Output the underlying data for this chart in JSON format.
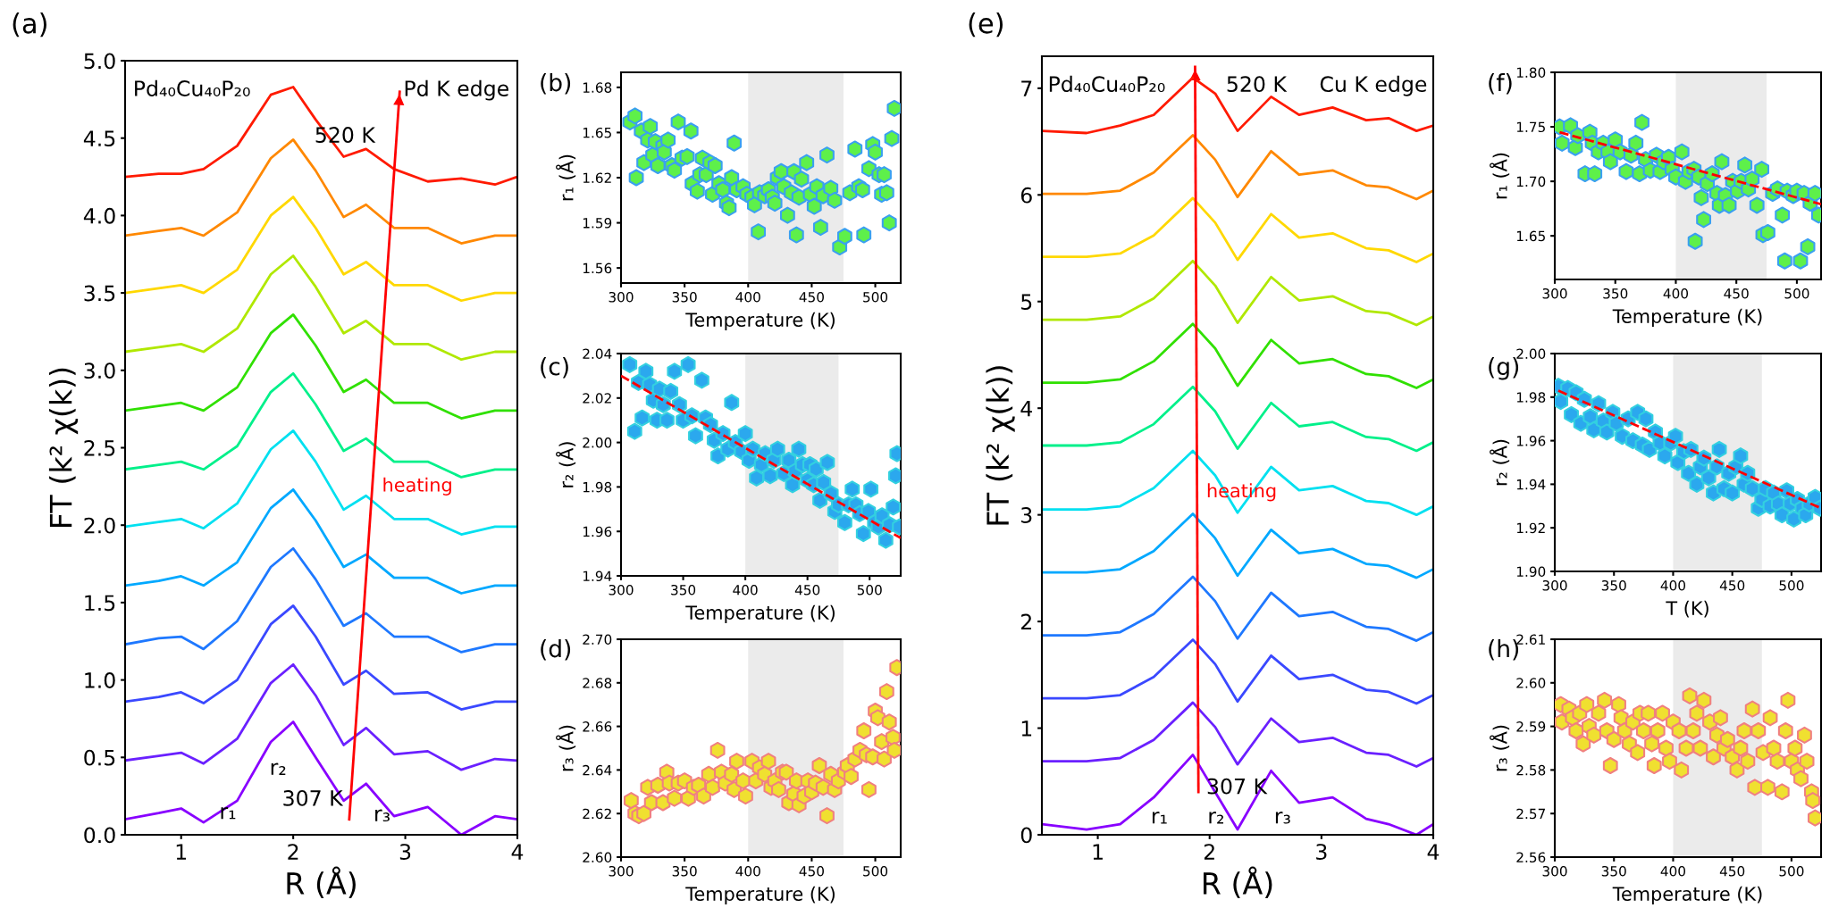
{
  "chart_data": [
    {
      "type": "line",
      "xlabel": "R (Å)",
      "ylabel": "FT (k² χ(k))",
      "xlim": [
        0.5,
        4
      ],
      "xticks": [
        1,
        2,
        3,
        4
      ],
      "ylim": [
        0,
        5
      ],
      "yticks": [
        {
          "value": 0,
          "label": "0.0"
        },
        0.5,
        {
          "value": 1,
          "label": "1.0"
        },
        1.5,
        {
          "value": 2,
          "label": "2.0"
        },
        2.5,
        {
          "value": 3,
          "label": "3.0"
        },
        3.5,
        {
          "value": 4,
          "label": "4.0"
        },
        4.5,
        {
          "value": 5,
          "label": "5.0"
        }
      ],
      "x": [
        0.5,
        0.8,
        1.0,
        1.2,
        1.5,
        1.8,
        2.0,
        2.2,
        2.45,
        2.65,
        2.9,
        3.2,
        3.5,
        3.8,
        4.0
      ],
      "series": [
        {
          "color": "#8800ff",
          "values": [
            0.1,
            0.14,
            0.17,
            0.08,
            0.22,
            0.6,
            0.73,
            0.5,
            0.22,
            0.33,
            0.12,
            0.18,
            0.0,
            0.12,
            0.1
          ]
        },
        {
          "color": "#6a20ff",
          "values": [
            0.48,
            0.51,
            0.53,
            0.46,
            0.62,
            0.98,
            1.1,
            0.9,
            0.58,
            0.69,
            0.52,
            0.54,
            0.42,
            0.49,
            0.48
          ]
        },
        {
          "color": "#3a48ff",
          "values": [
            0.86,
            0.89,
            0.92,
            0.85,
            1.0,
            1.36,
            1.48,
            1.28,
            0.97,
            1.06,
            0.91,
            0.92,
            0.81,
            0.86,
            0.86
          ]
        },
        {
          "color": "#1e78ff",
          "values": [
            1.23,
            1.27,
            1.28,
            1.2,
            1.38,
            1.73,
            1.85,
            1.65,
            1.35,
            1.43,
            1.28,
            1.28,
            1.18,
            1.23,
            1.23
          ]
        },
        {
          "color": "#00a8ff",
          "values": [
            1.61,
            1.64,
            1.67,
            1.61,
            1.76,
            2.11,
            2.23,
            2.03,
            1.73,
            1.81,
            1.66,
            1.66,
            1.56,
            1.61,
            1.61
          ]
        },
        {
          "color": "#00e0f0",
          "values": [
            1.99,
            2.02,
            2.04,
            1.98,
            2.14,
            2.49,
            2.61,
            2.41,
            2.1,
            2.19,
            2.04,
            2.04,
            1.94,
            1.99,
            1.99
          ]
        },
        {
          "color": "#00f08a",
          "values": [
            2.36,
            2.39,
            2.41,
            2.36,
            2.51,
            2.86,
            2.98,
            2.78,
            2.48,
            2.56,
            2.41,
            2.41,
            2.31,
            2.36,
            2.36
          ]
        },
        {
          "color": "#30e000",
          "values": [
            2.74,
            2.77,
            2.79,
            2.74,
            2.89,
            3.24,
            3.36,
            3.16,
            2.86,
            2.94,
            2.79,
            2.79,
            2.69,
            2.74,
            2.74
          ]
        },
        {
          "color": "#b0e800",
          "values": [
            3.12,
            3.15,
            3.17,
            3.12,
            3.27,
            3.62,
            3.74,
            3.54,
            3.24,
            3.32,
            3.17,
            3.17,
            3.07,
            3.12,
            3.12
          ]
        },
        {
          "color": "#ffd800",
          "values": [
            3.5,
            3.53,
            3.55,
            3.5,
            3.65,
            4.0,
            4.12,
            3.92,
            3.62,
            3.7,
            3.55,
            3.55,
            3.45,
            3.5,
            3.5
          ]
        },
        {
          "color": "#ff8800",
          "values": [
            3.87,
            3.9,
            3.92,
            3.87,
            4.02,
            4.37,
            4.49,
            4.29,
            3.99,
            4.07,
            3.92,
            3.92,
            3.82,
            3.87,
            3.87
          ]
        },
        {
          "color": "#ff1a00",
          "values": [
            4.25,
            4.27,
            4.27,
            4.3,
            4.45,
            4.78,
            4.83,
            4.62,
            4.38,
            4.43,
            4.3,
            4.22,
            4.24,
            4.2,
            4.25
          ]
        },
        {
          "type": "line",
          "color": "#ff0000",
          "line_style": "solid",
          "x": [
            2.5,
            2.95
          ],
          "values": [
            0.1,
            4.8
          ]
        }
      ],
      "annotations": [
        "(a)",
        "Pd₄₀Cu₄₀P₂₀",
        "Pd K edge",
        "520 K",
        "307 K",
        "heating",
        "r₁",
        "r₂",
        "r₃"
      ]
    },
    {
      "type": "scatter",
      "xlabel": "Temperature (K)",
      "ylabel": "r₁ (Å)",
      "xlim": [
        300,
        520
      ],
      "xticks": [
        300,
        350,
        400,
        450,
        500
      ],
      "ylim": [
        1.55,
        1.69
      ],
      "yticks": [
        1.56,
        1.59,
        1.62,
        1.65,
        1.68
      ],
      "bands": [
        {
          "axis": "x",
          "from": 400,
          "to": 475,
          "color": "#ebebeb"
        }
      ],
      "annotations": [
        "(b)"
      ],
      "series": [
        {
          "color": "#5ef04a",
          "x": [
            307,
            311,
            312,
            316,
            318,
            321,
            323,
            325,
            327,
            329,
            333,
            334,
            337,
            340,
            342,
            345,
            348,
            352,
            355,
            356,
            360,
            362,
            364,
            367,
            370,
            372,
            374,
            377,
            380,
            383,
            385,
            387,
            389,
            391,
            396,
            399,
            403,
            405,
            408,
            409,
            413,
            416,
            419,
            421,
            423,
            426,
            428,
            431,
            434,
            436,
            438,
            440,
            442,
            446,
            449,
            452,
            454,
            457,
            459,
            462,
            465,
            468,
            472,
            476,
            480,
            484,
            487,
            490,
            491,
            495,
            498,
            500,
            503,
            505,
            507,
            509,
            511,
            513,
            515
          ],
          "values": [
            1.657,
            1.661,
            1.62,
            1.651,
            1.63,
            1.645,
            1.654,
            1.635,
            1.644,
            1.628,
            1.641,
            1.637,
            1.645,
            1.628,
            1.625,
            1.657,
            1.633,
            1.634,
            1.651,
            1.616,
            1.611,
            1.622,
            1.633,
            1.622,
            1.63,
            1.609,
            1.628,
            1.616,
            1.612,
            1.603,
            1.6,
            1.62,
            1.643,
            1.612,
            1.614,
            1.609,
            1.607,
            1.602,
            1.584,
            1.61,
            1.608,
            1.612,
            1.607,
            1.603,
            1.62,
            1.624,
            1.614,
            1.595,
            1.61,
            1.624,
            1.582,
            1.607,
            1.619,
            1.63,
            1.609,
            1.601,
            1.614,
            1.587,
            1.608,
            1.635,
            1.613,
            1.605,
            1.574,
            1.581,
            1.61,
            1.639,
            1.614,
            1.612,
            1.582,
            1.626,
            1.642,
            1.637,
            1.622,
            1.609,
            1.622,
            1.61,
            1.59,
            1.646,
            1.666
          ]
        }
      ]
    },
    {
      "type": "scatter",
      "xlabel": "Temperature (K)",
      "ylabel": "r₂ (Å)",
      "xlim": [
        300,
        525
      ],
      "xticks": [
        300,
        350,
        400,
        450,
        500
      ],
      "ylim": [
        1.94,
        2.04
      ],
      "yticks": [
        1.94,
        1.96,
        1.98,
        {
          "value": 2.0,
          "label": "2.00"
        },
        2.02,
        2.04
      ],
      "bands": [
        {
          "axis": "x",
          "from": 400,
          "to": 475,
          "color": "#ebebeb"
        }
      ],
      "annotations": [
        "(c)"
      ],
      "series": [
        {
          "color": "#2ba8ee",
          "x": [
            307,
            311,
            314,
            317,
            320,
            323,
            326,
            329,
            331,
            334,
            337,
            340,
            343,
            347,
            350,
            354,
            357,
            360,
            365,
            368,
            372,
            375,
            378,
            382,
            386,
            389,
            392,
            397,
            400,
            403,
            406,
            409,
            413,
            416,
            420,
            423,
            426,
            431,
            435,
            438,
            440,
            443,
            446,
            450,
            452,
            455,
            457,
            460,
            463,
            466,
            469,
            472,
            475,
            480,
            483,
            486,
            489,
            492,
            495,
            499,
            501,
            504,
            507,
            510,
            513,
            516,
            519,
            521,
            522,
            524
          ],
          "values": [
            2.035,
            2.005,
            2.027,
            2.011,
            2.032,
            2.026,
            2.019,
            2.01,
            2.024,
            2.017,
            2.01,
            2.023,
            2.032,
            2.017,
            2.01,
            2.035,
            2.012,
            2.003,
            2.028,
            2.011,
            2.008,
            2.001,
            1.994,
            2.004,
            1.997,
            2.018,
            2.0,
            1.996,
            2.004,
            1.992,
            1.997,
            1.984,
            1.99,
            1.995,
            1.985,
            1.992,
            1.997,
            1.986,
            1.992,
            1.981,
            1.987,
            1.997,
            1.99,
            1.983,
            1.99,
            1.981,
            1.988,
            1.974,
            1.982,
            1.991,
            1.977,
            1.969,
            1.972,
            1.964,
            1.972,
            1.979,
            1.972,
            1.968,
            1.959,
            1.969,
            1.979,
            1.964,
            1.962,
            1.967,
            1.956,
            1.963,
            1.971,
            1.985,
            1.995,
            1.962
          ]
        },
        {
          "type": "line",
          "color": "#ff0000",
          "line_style": "dashed",
          "x": [
            300,
            525
          ],
          "values": [
            2.03,
            1.957
          ]
        }
      ]
    },
    {
      "type": "scatter",
      "xlabel": "Temperature (K)",
      "ylabel": "r₃ (Å)",
      "xlim": [
        300,
        520
      ],
      "xticks": [
        300,
        350,
        400,
        450,
        500
      ],
      "ylim": [
        2.6,
        2.7
      ],
      "yticks": [
        {
          "value": 2.6,
          "label": "2.60"
        },
        2.62,
        2.64,
        2.66,
        2.68,
        {
          "value": 2.7,
          "label": "2.70"
        }
      ],
      "bands": [
        {
          "axis": "x",
          "from": 400,
          "to": 475,
          "color": "#ebebeb"
        }
      ],
      "annotations": [
        "(d)"
      ],
      "series": [
        {
          "color": "#f0e030",
          "x": [
            308,
            311,
            314,
            318,
            321,
            324,
            329,
            333,
            336,
            338,
            342,
            345,
            350,
            353,
            357,
            361,
            365,
            369,
            372,
            376,
            379,
            382,
            387,
            389,
            391,
            396,
            398,
            403,
            406,
            409,
            413,
            416,
            418,
            421,
            424,
            427,
            430,
            432,
            436,
            438,
            440,
            444,
            447,
            450,
            453,
            456,
            459,
            462,
            465,
            468,
            471,
            476,
            478,
            481,
            484,
            488,
            491,
            493,
            495,
            498,
            500,
            502,
            505,
            507,
            509,
            511,
            514,
            515,
            517
          ],
          "values": [
            2.626,
            2.62,
            2.619,
            2.62,
            2.632,
            2.625,
            2.633,
            2.625,
            2.639,
            2.634,
            2.627,
            2.634,
            2.635,
            2.627,
            2.632,
            2.633,
            2.628,
            2.638,
            2.632,
            2.649,
            2.639,
            2.634,
            2.638,
            2.631,
            2.644,
            2.635,
            2.628,
            2.644,
            2.635,
            2.641,
            2.638,
            2.644,
            2.632,
            2.635,
            2.631,
            2.639,
            2.639,
            2.625,
            2.629,
            2.635,
            2.624,
            2.628,
            2.635,
            2.63,
            2.634,
            2.642,
            2.632,
            2.619,
            2.638,
            2.631,
            2.635,
            2.639,
            2.642,
            2.637,
            2.645,
            2.649,
            2.658,
            2.647,
            2.631,
            2.646,
            2.667,
            2.664,
            2.653,
            2.645,
            2.676,
            2.662,
            2.655,
            2.649,
            2.687
          ]
        }
      ]
    },
    {
      "type": "line",
      "xlabel": "R (Å)",
      "ylabel": "FT (k² χ(k))",
      "xlim": [
        0.5,
        4
      ],
      "xticks": [
        1,
        2,
        3,
        4
      ],
      "ylim": [
        0,
        7.3
      ],
      "yticks": [
        0,
        1,
        2,
        3,
        4,
        5,
        6,
        7
      ],
      "x": [
        0.5,
        0.9,
        1.2,
        1.5,
        1.85,
        2.05,
        2.25,
        2.55,
        2.8,
        3.1,
        3.4,
        3.6,
        3.85,
        4.0
      ],
      "series": [
        {
          "color": "#8800ff",
          "values": [
            0.1,
            0.05,
            0.1,
            0.35,
            0.75,
            0.4,
            0.05,
            0.6,
            0.3,
            0.35,
            0.15,
            0.1,
            0.0,
            0.1
          ]
        },
        {
          "color": "#6a20ff",
          "values": [
            0.69,
            0.69,
            0.72,
            0.89,
            1.24,
            1.01,
            0.66,
            1.09,
            0.87,
            0.91,
            0.77,
            0.75,
            0.64,
            0.72
          ]
        },
        {
          "color": "#3a48ff",
          "values": [
            1.28,
            1.28,
            1.31,
            1.48,
            1.83,
            1.6,
            1.25,
            1.68,
            1.46,
            1.5,
            1.36,
            1.34,
            1.23,
            1.31
          ]
        },
        {
          "color": "#1e78ff",
          "values": [
            1.87,
            1.87,
            1.9,
            2.07,
            2.42,
            2.19,
            1.84,
            2.27,
            2.05,
            2.09,
            1.95,
            1.93,
            1.82,
            1.9
          ]
        },
        {
          "color": "#00a8ff",
          "values": [
            2.46,
            2.46,
            2.49,
            2.66,
            3.01,
            2.78,
            2.43,
            2.86,
            2.64,
            2.68,
            2.54,
            2.52,
            2.41,
            2.49
          ]
        },
        {
          "color": "#00e0f0",
          "values": [
            3.05,
            3.05,
            3.08,
            3.25,
            3.6,
            3.37,
            3.02,
            3.45,
            3.23,
            3.27,
            3.13,
            3.11,
            3.0,
            3.08
          ]
        },
        {
          "color": "#00f08a",
          "values": [
            3.65,
            3.65,
            3.68,
            3.85,
            4.2,
            3.97,
            3.62,
            4.05,
            3.83,
            3.87,
            3.73,
            3.71,
            3.6,
            3.68
          ]
        },
        {
          "color": "#30e000",
          "values": [
            4.24,
            4.24,
            4.27,
            4.44,
            4.79,
            4.56,
            4.21,
            4.64,
            4.42,
            4.46,
            4.32,
            4.3,
            4.19,
            4.27
          ]
        },
        {
          "color": "#b0e800",
          "values": [
            4.83,
            4.83,
            4.86,
            5.03,
            5.38,
            5.15,
            4.8,
            5.23,
            5.01,
            5.05,
            4.91,
            4.89,
            4.78,
            4.86
          ]
        },
        {
          "color": "#ffd800",
          "values": [
            5.42,
            5.42,
            5.45,
            5.62,
            5.97,
            5.74,
            5.39,
            5.82,
            5.6,
            5.64,
            5.5,
            5.48,
            5.37,
            5.45
          ]
        },
        {
          "color": "#ff8800",
          "values": [
            6.01,
            6.01,
            6.04,
            6.21,
            6.56,
            6.33,
            5.98,
            6.41,
            6.19,
            6.23,
            6.09,
            6.07,
            5.96,
            6.04
          ]
        },
        {
          "color": "#ff1a00",
          "values": [
            6.6,
            6.58,
            6.65,
            6.75,
            7.1,
            6.95,
            6.6,
            6.92,
            6.75,
            6.82,
            6.7,
            6.72,
            6.6,
            6.65
          ]
        },
        {
          "type": "line",
          "color": "#ff0000",
          "line_style": "solid",
          "x": [
            1.9,
            1.87
          ],
          "values": [
            0.4,
            7.2
          ]
        }
      ],
      "annotations": [
        "(e)",
        "Pd₄₀Cu₄₀P₂₀",
        "Cu K edge",
        "520 K",
        "307 K",
        "heating",
        "r₁",
        "r₂",
        "r₃"
      ]
    },
    {
      "type": "scatter",
      "xlabel": "Temperature (K)",
      "ylabel": "r₁ (Å)",
      "xlim": [
        300,
        520
      ],
      "xticks": [
        300,
        350,
        400,
        450,
        500
      ],
      "ylim": [
        1.61,
        1.8
      ],
      "yticks": [
        1.65,
        {
          "value": 1.7,
          "label": "1.70"
        },
        1.75,
        {
          "value": 1.8,
          "label": "1.80"
        }
      ],
      "bands": [
        {
          "axis": "x",
          "from": 400,
          "to": 475,
          "color": "#ebebeb"
        }
      ],
      "annotations": [
        "(f)"
      ],
      "series": [
        {
          "color": "#5ef04a",
          "x": [
            304,
            306,
            313,
            317,
            319,
            325,
            329,
            331,
            333,
            336,
            340,
            344,
            346,
            350,
            354,
            359,
            363,
            367,
            370,
            372,
            375,
            379,
            384,
            387,
            390,
            394,
            397,
            400,
            405,
            408,
            411,
            415,
            416,
            419,
            421,
            423,
            426,
            430,
            434,
            436,
            438,
            441,
            444,
            447,
            451,
            454,
            457,
            460,
            463,
            467,
            471,
            472,
            476,
            480,
            484,
            488,
            490,
            492,
            497,
            500,
            503,
            506,
            509,
            511,
            515,
            518
          ],
          "values": [
            1.75,
            1.735,
            1.751,
            1.731,
            1.742,
            1.707,
            1.745,
            1.735,
            1.707,
            1.727,
            1.735,
            1.727,
            1.718,
            1.738,
            1.727,
            1.709,
            1.724,
            1.735,
            1.707,
            1.754,
            1.72,
            1.71,
            1.724,
            1.709,
            1.718,
            1.722,
            1.711,
            1.704,
            1.727,
            1.7,
            1.709,
            1.711,
            1.645,
            1.704,
            1.685,
            1.665,
            1.698,
            1.707,
            1.689,
            1.678,
            1.718,
            1.687,
            1.678,
            1.7,
            1.691,
            1.7,
            1.715,
            1.693,
            1.702,
            1.678,
            1.711,
            1.651,
            1.653,
            1.689,
            1.693,
            1.669,
            1.627,
            1.691,
            1.687,
            1.691,
            1.627,
            1.689,
            1.64,
            1.68,
            1.689,
            1.669
          ]
        },
        {
          "type": "line",
          "color": "#ff0000",
          "line_style": "dashed",
          "x": [
            304,
            520
          ],
          "values": [
            1.745,
            1.679
          ]
        }
      ]
    },
    {
      "type": "scatter",
      "xlabel": "T (K)",
      "ylabel": "r₂ (Å)",
      "xlim": [
        300,
        525
      ],
      "xticks": [
        300,
        350,
        400,
        450,
        500
      ],
      "ylim": [
        1.9,
        2.0
      ],
      "yticks": [
        {
          "value": 1.9,
          "label": "1.90"
        },
        1.92,
        1.94,
        1.96,
        1.98,
        {
          "value": 2.0,
          "label": "2.00"
        }
      ],
      "bands": [
        {
          "axis": "x",
          "from": 400,
          "to": 475,
          "color": "#ebebeb"
        }
      ],
      "annotations": [
        "(g)"
      ],
      "series": [
        {
          "color": "#2ba8ee",
          "x": [
            303,
            305,
            311,
            314,
            318,
            322,
            325,
            330,
            333,
            337,
            341,
            344,
            349,
            352,
            357,
            362,
            366,
            370,
            374,
            377,
            380,
            385,
            389,
            393,
            398,
            402,
            404,
            409,
            413,
            415,
            420,
            423,
            426,
            430,
            434,
            437,
            439,
            443,
            447,
            450,
            453,
            457,
            460,
            463,
            467,
            472,
            475,
            478,
            482,
            485,
            489,
            492,
            496,
            499,
            502,
            505,
            509,
            512,
            515,
            520,
            524
          ],
          "values": [
            1.985,
            1.978,
            1.984,
            1.972,
            1.982,
            1.968,
            1.979,
            1.971,
            1.965,
            1.977,
            1.969,
            1.964,
            1.973,
            1.968,
            1.962,
            1.97,
            1.96,
            1.973,
            1.958,
            1.97,
            1.956,
            1.964,
            1.959,
            1.953,
            1.959,
            1.962,
            1.95,
            1.955,
            1.945,
            1.956,
            1.94,
            1.948,
            1.952,
            1.943,
            1.936,
            1.948,
            1.956,
            1.938,
            1.945,
            1.936,
            1.948,
            1.953,
            1.94,
            1.945,
            1.938,
            1.929,
            1.933,
            1.938,
            1.93,
            1.936,
            1.931,
            1.926,
            1.937,
            1.931,
            1.924,
            1.933,
            1.929,
            1.926,
            1.931,
            1.934,
            1.929
          ]
        },
        {
          "type": "line",
          "color": "#ff0000",
          "line_style": "dashed",
          "x": [
            303,
            525
          ],
          "values": [
            1.983,
            1.929
          ]
        }
      ]
    },
    {
      "type": "scatter",
      "xlabel": "Temperature (K)",
      "ylabel": "r₃ (Å)",
      "xlim": [
        300,
        525
      ],
      "xticks": [
        300,
        350,
        400,
        450,
        500
      ],
      "ylim": [
        2.56,
        2.61
      ],
      "yticks": [
        2.56,
        2.57,
        2.58,
        2.59,
        {
          "value": 2.6,
          "label": "2.60"
        },
        2.61
      ],
      "bands": [
        {
          "axis": "x",
          "from": 400,
          "to": 475,
          "color": "#ebebeb"
        }
      ],
      "annotations": [
        "(h)"
      ],
      "series": [
        {
          "color": "#f0e030",
          "x": [
            305,
            306,
            312,
            315,
            318,
            321,
            324,
            327,
            329,
            333,
            337,
            342,
            344,
            347,
            350,
            354,
            356,
            359,
            363,
            366,
            370,
            372,
            375,
            379,
            382,
            384,
            387,
            391,
            394,
            397,
            400,
            405,
            407,
            411,
            414,
            417,
            420,
            423,
            426,
            431,
            434,
            437,
            440,
            443,
            446,
            450,
            454,
            457,
            460,
            463,
            467,
            469,
            472,
            476,
            480,
            482,
            485,
            488,
            492,
            495,
            497,
            500,
            503,
            505,
            508,
            511,
            513,
            517,
            518,
            520
          ],
          "values": [
            2.595,
            2.591,
            2.594,
            2.592,
            2.589,
            2.593,
            2.586,
            2.595,
            2.59,
            2.588,
            2.593,
            2.596,
            2.589,
            2.581,
            2.587,
            2.595,
            2.592,
            2.589,
            2.586,
            2.591,
            2.584,
            2.593,
            2.589,
            2.593,
            2.586,
            2.581,
            2.589,
            2.593,
            2.585,
            2.582,
            2.591,
            2.589,
            2.58,
            2.585,
            2.597,
            2.589,
            2.593,
            2.585,
            2.596,
            2.591,
            2.583,
            2.588,
            2.592,
            2.585,
            2.587,
            2.583,
            2.58,
            2.585,
            2.589,
            2.582,
            2.594,
            2.576,
            2.589,
            2.584,
            2.576,
            2.592,
            2.585,
            2.582,
            2.575,
            2.589,
            2.596,
            2.582,
            2.585,
            2.58,
            2.578,
            2.588,
            2.582,
            2.575,
            2.573,
            2.569
          ]
        }
      ]
    }
  ]
}
